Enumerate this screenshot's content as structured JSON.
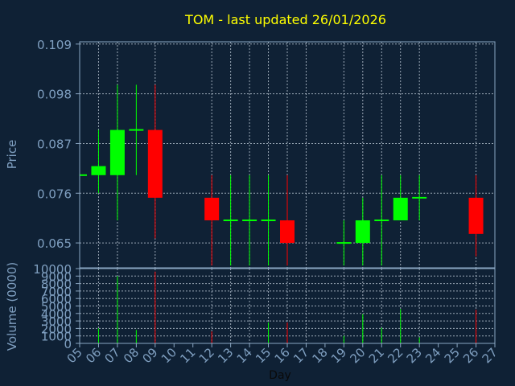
{
  "chart_data": {
    "type": "candlestick",
    "title": "TOM - last updated 26/01/2026",
    "colors": {
      "background": "#0f2135",
      "axis": "#8aa6c2",
      "grid": "#c8d4e0",
      "title": "#ffff00",
      "label": "#7f9fc0",
      "up": "#00ff00",
      "down": "#ff0000",
      "neutral": "#00ff00"
    },
    "price_panel": {
      "ylabel": "Price",
      "ylim": [
        0.0595,
        0.1095
      ],
      "y_ticks": [
        0.065,
        0.076,
        0.087,
        0.098,
        0.109
      ],
      "y_tick_labels": [
        "0.065",
        "0.076",
        "0.087",
        "0.098",
        "0.109"
      ],
      "grid": true
    },
    "volume_panel": {
      "ylabel": "Volume (0000)",
      "ylim": [
        0,
        10000
      ],
      "y_ticks": [
        0,
        1000,
        2000,
        3000,
        4000,
        5000,
        6000,
        7000,
        8000,
        9000,
        10000
      ],
      "y_tick_labels": [
        "0",
        "1000",
        "2000",
        "3000",
        "4000",
        "5000",
        "6000",
        "7000",
        "8000",
        "9000",
        "10000"
      ],
      "grid": true
    },
    "xlabel": "Day",
    "x_ticks": [
      "05",
      "06",
      "07",
      "08",
      "09",
      "10",
      "11",
      "12",
      "13",
      "14",
      "15",
      "16",
      "17",
      "18",
      "19",
      "20",
      "21",
      "22",
      "23",
      "24",
      "25",
      "26",
      "27"
    ],
    "x_grid_days": [
      "06",
      "07",
      "09",
      "12",
      "13",
      "14",
      "15",
      "16",
      "17",
      "19",
      "20",
      "21",
      "22",
      "23",
      "26"
    ],
    "candles": [
      {
        "day": "05",
        "open": 0.08,
        "high": 0.08,
        "low": 0.08,
        "close": 0.08,
        "volume": 0
      },
      {
        "day": "06",
        "open": 0.08,
        "high": 0.09,
        "low": 0.076,
        "close": 0.082,
        "volume": 2000
      },
      {
        "day": "07",
        "open": 0.08,
        "high": 0.1,
        "low": 0.07,
        "close": 0.09,
        "volume": 9000
      },
      {
        "day": "08",
        "open": 0.09,
        "high": 0.1,
        "low": 0.08,
        "close": 0.09,
        "volume": 1800
      },
      {
        "day": "09",
        "open": 0.09,
        "high": 0.1,
        "low": 0.066,
        "close": 0.075,
        "volume": 9600
      },
      {
        "day": "12",
        "open": 0.075,
        "high": 0.08,
        "low": 0.06,
        "close": 0.07,
        "volume": 1600
      },
      {
        "day": "13",
        "open": 0.07,
        "high": 0.08,
        "low": 0.06,
        "close": 0.07,
        "volume": 0
      },
      {
        "day": "14",
        "open": 0.07,
        "high": 0.08,
        "low": 0.06,
        "close": 0.07,
        "volume": 0
      },
      {
        "day": "15",
        "open": 0.07,
        "high": 0.08,
        "low": 0.06,
        "close": 0.07,
        "volume": 2800
      },
      {
        "day": "16",
        "open": 0.07,
        "high": 0.08,
        "low": 0.06,
        "close": 0.065,
        "volume": 2800
      },
      {
        "day": "19",
        "open": 0.065,
        "high": 0.07,
        "low": 0.06,
        "close": 0.065,
        "volume": 1000
      },
      {
        "day": "20",
        "open": 0.065,
        "high": 0.075,
        "low": 0.06,
        "close": 0.07,
        "volume": 3900
      },
      {
        "day": "21",
        "open": 0.07,
        "high": 0.08,
        "low": 0.06,
        "close": 0.07,
        "volume": 2100
      },
      {
        "day": "22",
        "open": 0.07,
        "high": 0.08,
        "low": 0.07,
        "close": 0.075,
        "volume": 4600
      },
      {
        "day": "23",
        "open": 0.075,
        "high": 0.08,
        "low": 0.07,
        "close": 0.075,
        "volume": 800
      },
      {
        "day": "26",
        "open": 0.075,
        "high": 0.08,
        "low": 0.062,
        "close": 0.067,
        "volume": 4500
      }
    ]
  }
}
